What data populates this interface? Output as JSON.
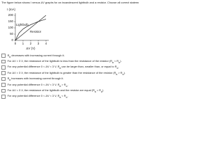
{
  "prompt": "The figure below shows I versus ΔV graphs for an incandescent lightbulb and a resistor. Choose all correct statements.",
  "chart_data": {
    "type": "line",
    "ylabel": "I (mA)",
    "xlabel": "ΔV (V)",
    "x": [
      0,
      0.5,
      1,
      1.5,
      2,
      2.5,
      3,
      3.5,
      4
    ],
    "series": [
      {
        "name": "Lightbulb",
        "color": "#222222",
        "values": [
          0,
          60,
          90,
          110,
          125,
          138,
          150,
          160,
          170
        ]
      },
      {
        "name": "Resistor",
        "color": "#222222",
        "values": [
          0,
          25,
          50,
          75,
          100,
          125,
          150,
          175,
          200
        ]
      }
    ],
    "xlim": [
      0,
      4
    ],
    "xticks": [
      0,
      1,
      2,
      3,
      4
    ],
    "ylim": [
      0,
      200
    ],
    "yticks": [
      0,
      50,
      100,
      150,
      200
    ],
    "grid": false
  },
  "statements": [
    [
      {
        "text": "R"
      },
      {
        "text": "B",
        "sub": true
      },
      {
        "text": " decreases with increasing current through it."
      }
    ],
    [
      {
        "text": "For ΔV > 3 V, the resistance of the lightbulb is less than the resistance of the resistor (R"
      },
      {
        "text": "B",
        "sub": true
      },
      {
        "text": " < R"
      },
      {
        "text": "R",
        "sub": true
      },
      {
        "text": ")."
      }
    ],
    [
      {
        "text": "For any potential difference 0 < ΔV < 3 V, R"
      },
      {
        "text": "B",
        "sub": true
      },
      {
        "text": " can be larger than, smaller than, or equal to R"
      },
      {
        "text": "R",
        "sub": true
      },
      {
        "text": "."
      }
    ],
    [
      {
        "text": "For ΔV > 3 V, the resistance of the lightbulb is greater than the resistance of the resistor (R"
      },
      {
        "text": "B",
        "sub": true
      },
      {
        "text": " > R"
      },
      {
        "text": "R",
        "sub": true
      },
      {
        "text": ")."
      }
    ],
    [
      {
        "text": "R"
      },
      {
        "text": "B",
        "sub": true
      },
      {
        "text": " increases with increasing current through it."
      }
    ],
    [
      {
        "text": "For any potential difference 0 < ΔV < 3 V, R"
      },
      {
        "text": "B",
        "sub": true
      },
      {
        "text": " > R"
      },
      {
        "text": "R",
        "sub": true
      },
      {
        "text": "."
      }
    ],
    [
      {
        "text": "For ΔV = 3 V, the resistance of the lightbulb and the resistor are equal (R"
      },
      {
        "text": "B",
        "sub": true
      },
      {
        "text": " = R"
      },
      {
        "text": "R",
        "sub": true
      },
      {
        "text": ")."
      }
    ],
    [
      {
        "text": "For any potential difference 0 < ΔV < 3 V, R"
      },
      {
        "text": "B",
        "sub": true
      },
      {
        "text": " < R"
      },
      {
        "text": "R",
        "sub": true
      },
      {
        "text": "."
      }
    ]
  ]
}
